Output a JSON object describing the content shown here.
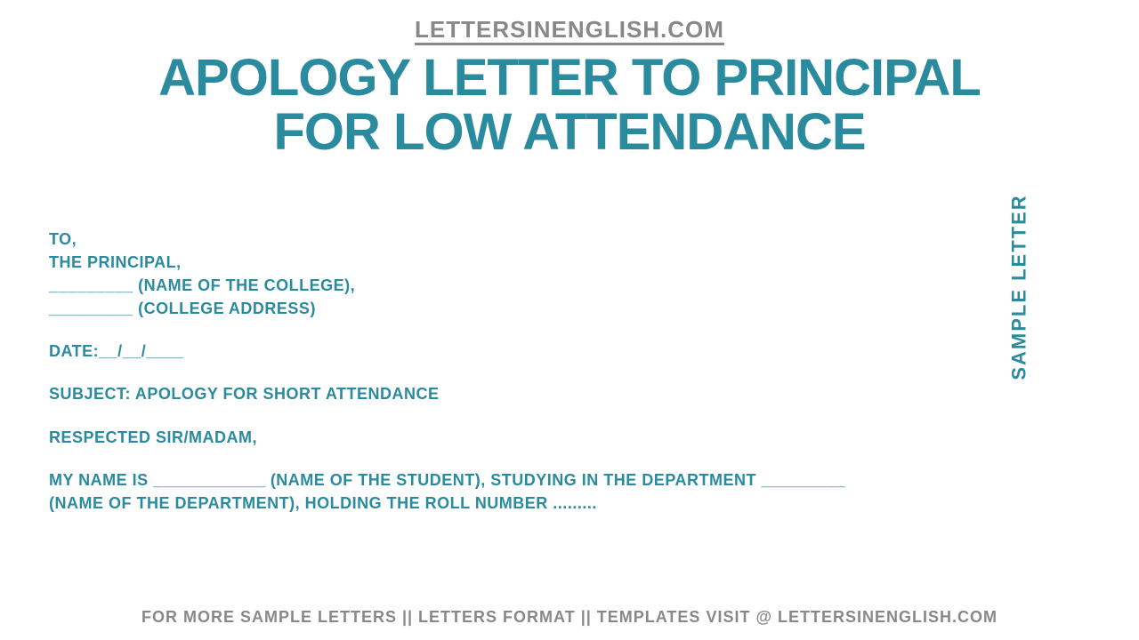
{
  "header": {
    "website": "LETTERSINENGLISH.COM"
  },
  "title": {
    "line1": "APOLOGY LETTER TO PRINCIPAL",
    "line2": "FOR LOW ATTENDANCE"
  },
  "sideLabel": "SAMPLE LETTER",
  "letter": {
    "to": "TO,",
    "principal": "THE PRINCIPAL,",
    "collegeName": "_________ (NAME OF THE COLLEGE),",
    "collegeAddress": "_________ (COLLEGE ADDRESS)",
    "date": "DATE:__/__/____",
    "subject": "SUBJECT: APOLOGY FOR SHORT ATTENDANCE",
    "salutation": "RESPECTED SIR/MADAM,",
    "bodyLine1": "MY NAME IS ____________ (NAME OF THE STUDENT), STUDYING IN THE DEPARTMENT _________",
    "bodyLine2": "(NAME OF THE DEPARTMENT), HOLDING THE ROLL NUMBER ........."
  },
  "footer": {
    "text": "FOR MORE SAMPLE LETTERS || LETTERS FORMAT || TEMPLATES VISIT @ LETTERSINENGLISH.COM"
  },
  "colors": {
    "primary": "#2a8a9e",
    "gray": "#888888",
    "background": "#ffffff"
  },
  "typography": {
    "titleFontSize": 58,
    "headerFontSize": 26,
    "bodyFontSize": 18,
    "sideFontSize": 22,
    "footerFontSize": 18
  }
}
